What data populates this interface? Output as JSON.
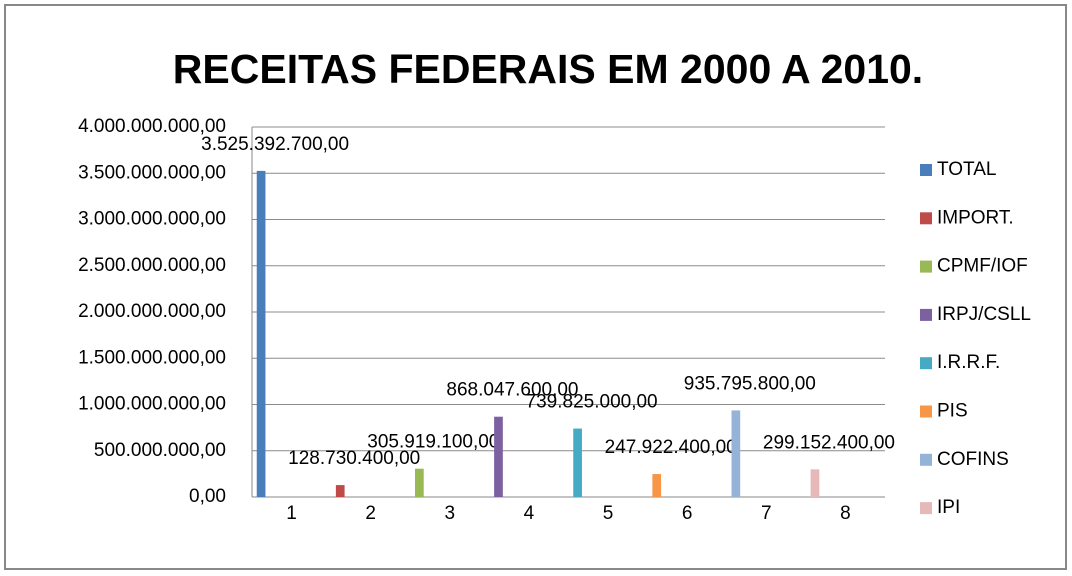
{
  "chart_data": {
    "type": "bar",
    "title": "RECEITAS FEDERAIS  EM 2000 A 2010.",
    "categories": [
      "1",
      "2",
      "3",
      "4",
      "5",
      "6",
      "7",
      "8"
    ],
    "series": [
      {
        "name": "TOTAL",
        "color": "#4a7ebb",
        "values": [
          3525392700,
          null,
          null,
          null,
          null,
          null,
          null,
          null
        ],
        "value_labels": [
          "3.525.392.700,00",
          null,
          null,
          null,
          null,
          null,
          null,
          null
        ]
      },
      {
        "name": "IMPORT.",
        "color": "#be4b48",
        "values": [
          null,
          128730400,
          null,
          null,
          null,
          null,
          null,
          null
        ],
        "value_labels": [
          null,
          "128.730.400,00",
          null,
          null,
          null,
          null,
          null,
          null
        ]
      },
      {
        "name": "CPMF/IOF",
        "color": "#98b954",
        "values": [
          null,
          null,
          305919100,
          null,
          null,
          null,
          null,
          null
        ],
        "value_labels": [
          null,
          null,
          "305.919.100,00",
          null,
          null,
          null,
          null,
          null
        ]
      },
      {
        "name": "IRPJ/CSLL",
        "color": "#7d60a0",
        "values": [
          null,
          null,
          null,
          868047600,
          null,
          null,
          null,
          null
        ],
        "value_labels": [
          null,
          null,
          null,
          "868.047.600,00",
          null,
          null,
          null,
          null
        ]
      },
      {
        "name": "I.R.R.F.",
        "color": "#46aac5",
        "values": [
          null,
          null,
          null,
          null,
          739825000,
          null,
          null,
          null
        ],
        "value_labels": [
          null,
          null,
          null,
          null,
          "739.825.000,00",
          null,
          null,
          null
        ]
      },
      {
        "name": "PIS",
        "color": "#f79646",
        "values": [
          null,
          null,
          null,
          null,
          null,
          247922400,
          null,
          null
        ],
        "value_labels": [
          null,
          null,
          null,
          null,
          null,
          "247.922.400,00",
          null,
          null
        ]
      },
      {
        "name": "COFINS",
        "color": "#95b3d7",
        "values": [
          null,
          null,
          null,
          null,
          null,
          null,
          935795800,
          null
        ],
        "value_labels": [
          null,
          null,
          null,
          null,
          null,
          null,
          "935.795.800,00",
          null
        ]
      },
      {
        "name": "IPI",
        "color": "#e6b9b8",
        "values": [
          null,
          null,
          null,
          null,
          null,
          null,
          null,
          299152400
        ],
        "value_labels": [
          null,
          null,
          null,
          null,
          null,
          null,
          null,
          "299.152.400,00"
        ]
      }
    ],
    "ylim": [
      0,
      4000000000
    ],
    "yticks": [
      {
        "value": 0,
        "label": "0,00"
      },
      {
        "value": 500000000,
        "label": "500.000.000,00"
      },
      {
        "value": 1000000000,
        "label": "1.000.000.000,00"
      },
      {
        "value": 1500000000,
        "label": "1.500.000.000,00"
      },
      {
        "value": 2000000000,
        "label": "2.000.000.000,00"
      },
      {
        "value": 2500000000,
        "label": "2.500.000.000,00"
      },
      {
        "value": 3000000000,
        "label": "3.000.000.000,00"
      },
      {
        "value": 3500000000,
        "label": "3.500.000.000,00"
      },
      {
        "value": 4000000000,
        "label": "4.000.000.000,00"
      }
    ],
    "grid": true,
    "legend": "right"
  }
}
